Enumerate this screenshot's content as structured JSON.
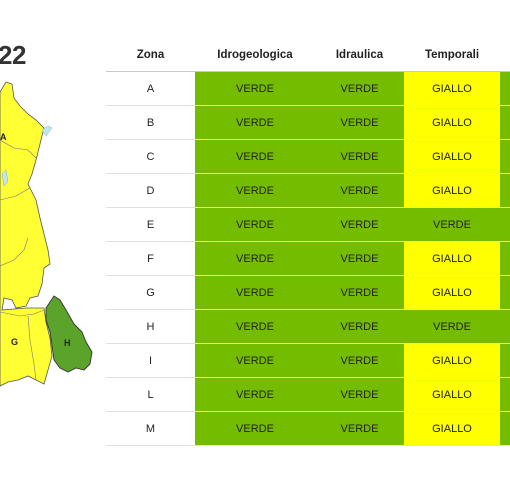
{
  "title_fragment": "22",
  "colors": {
    "verde": "#74bc00",
    "giallo": "#ffff00",
    "map_yellow": "#ffff33",
    "map_green": "#5ba32b"
  },
  "map": {
    "zone_labels": [
      "A",
      "G",
      "H"
    ],
    "highlighted_zone": "H"
  },
  "table": {
    "headers": [
      "Zona",
      "Idrogeologica",
      "Idraulica",
      "Temporali"
    ],
    "rows": [
      {
        "zona": "A",
        "idrogeologica": "VERDE",
        "idraulica": "VERDE",
        "temporali": "GIALLO",
        "next": "verde"
      },
      {
        "zona": "B",
        "idrogeologica": "VERDE",
        "idraulica": "VERDE",
        "temporali": "GIALLO",
        "next": "verde"
      },
      {
        "zona": "C",
        "idrogeologica": "VERDE",
        "idraulica": "VERDE",
        "temporali": "GIALLO",
        "next": "verde"
      },
      {
        "zona": "D",
        "idrogeologica": "VERDE",
        "idraulica": "VERDE",
        "temporali": "GIALLO",
        "next": "verde"
      },
      {
        "zona": "E",
        "idrogeologica": "VERDE",
        "idraulica": "VERDE",
        "temporali": "VERDE",
        "next": "verde"
      },
      {
        "zona": "F",
        "idrogeologica": "VERDE",
        "idraulica": "VERDE",
        "temporali": "GIALLO",
        "next": "verde"
      },
      {
        "zona": "G",
        "idrogeologica": "VERDE",
        "idraulica": "VERDE",
        "temporali": "GIALLO",
        "next": "verde"
      },
      {
        "zona": "H",
        "idrogeologica": "VERDE",
        "idraulica": "VERDE",
        "temporali": "VERDE",
        "next": "verde"
      },
      {
        "zona": "I",
        "idrogeologica": "VERDE",
        "idraulica": "VERDE",
        "temporali": "GIALLO",
        "next": "verde"
      },
      {
        "zona": "L",
        "idrogeologica": "VERDE",
        "idraulica": "VERDE",
        "temporali": "GIALLO",
        "next": "verde"
      },
      {
        "zona": "M",
        "idrogeologica": "VERDE",
        "idraulica": "VERDE",
        "temporali": "GIALLO",
        "next": "verde"
      }
    ]
  }
}
